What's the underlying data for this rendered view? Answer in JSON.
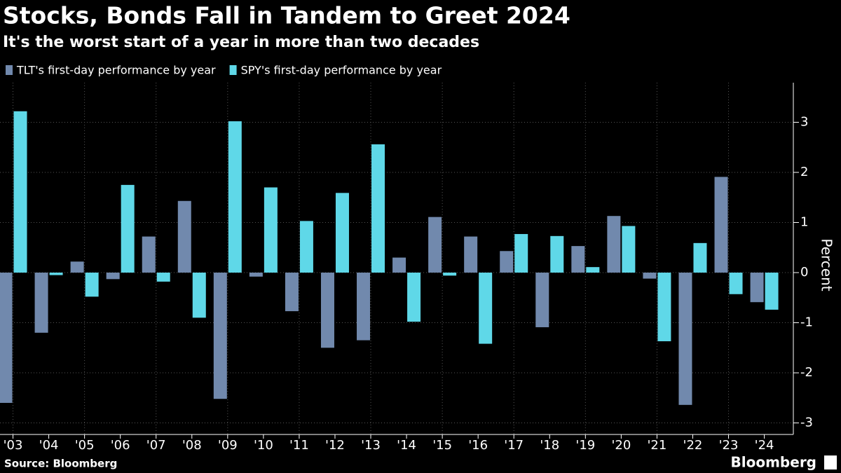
{
  "chart_data": {
    "type": "bar",
    "title": "Stocks, Bonds Fall in Tandem to Greet 2024",
    "subtitle": "It's the worst start of a year in more than two decades",
    "y_label": "Percent",
    "source": "Source: Bloomberg",
    "brand": "Bloomberg",
    "categories": [
      "'03",
      "'04",
      "'05",
      "'06",
      "'07",
      "'08",
      "'09",
      "'10",
      "'11",
      "'12",
      "'13",
      "'14",
      "'15",
      "'16",
      "'17",
      "'18",
      "'19",
      "'20",
      "'21",
      "'22",
      "'23",
      "'24"
    ],
    "series": [
      {
        "name": "TLT's first-day performance by year",
        "color": "#7189ad",
        "values": [
          -2.6,
          -1.2,
          0.22,
          -0.13,
          0.72,
          1.43,
          -2.52,
          -0.08,
          -0.77,
          -1.5,
          -1.35,
          0.3,
          1.11,
          0.72,
          0.43,
          -1.09,
          0.53,
          1.13,
          -0.12,
          -2.64,
          1.91,
          -0.59
        ]
      },
      {
        "name": "SPY's first-day performance by year",
        "color": "#5fd8e8",
        "values": [
          3.22,
          -0.05,
          -0.48,
          1.75,
          -0.18,
          -0.9,
          3.02,
          1.7,
          1.03,
          1.59,
          2.56,
          -0.98,
          -0.06,
          -1.42,
          0.77,
          0.73,
          0.11,
          0.93,
          -1.37,
          0.59,
          -0.43,
          -0.74
        ]
      }
    ],
    "ylim": [
      -3.23,
      3.79
    ],
    "yticks": [
      -3,
      -2,
      -1,
      0,
      1,
      2,
      3
    ],
    "y_axis_side": "right",
    "grid": true
  }
}
